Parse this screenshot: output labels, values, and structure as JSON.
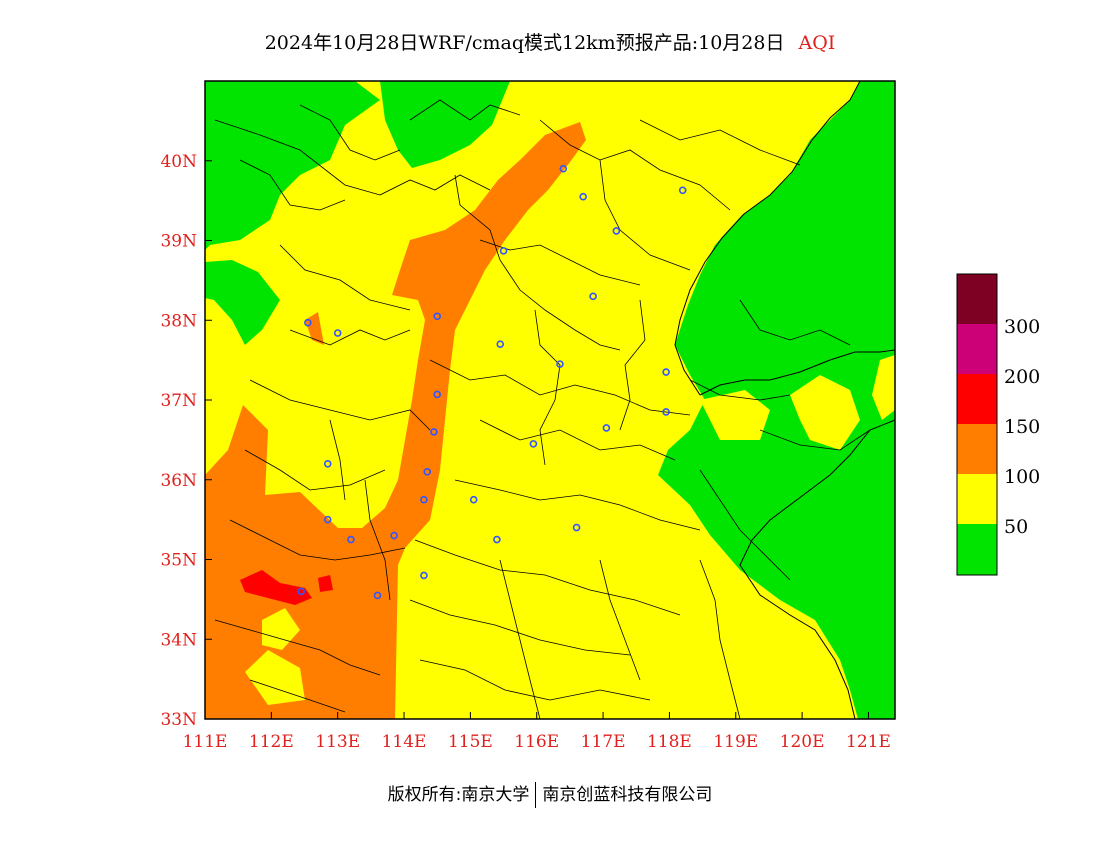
{
  "header": {
    "title": "2024年10月28日WRF/cmaq模式12km预报产品:10月28日",
    "product": "AQI"
  },
  "map": {
    "lon_range": [
      111,
      121.4
    ],
    "lat_range": [
      33,
      41
    ],
    "x_ticks": [
      "111E",
      "112E",
      "113E",
      "114E",
      "115E",
      "116E",
      "117E",
      "118E",
      "119E",
      "120E",
      "121E"
    ],
    "y_ticks": [
      "33N",
      "34N",
      "35N",
      "36N",
      "37N",
      "38N",
      "39N",
      "40N"
    ],
    "colors": {
      "good": "#00e400",
      "moderate": "#ffff00",
      "usg": "#ff7e00",
      "unhealthy": "#ff0000",
      "very_unhealthy": "#cc0077",
      "hazardous": "#7e0023",
      "station": "#3355ff",
      "tick_text": "#e0201c"
    },
    "stations": [
      [
        116.4,
        39.9
      ],
      [
        116.7,
        39.55
      ],
      [
        118.2,
        39.63
      ],
      [
        117.2,
        39.12
      ],
      [
        115.5,
        38.87
      ],
      [
        116.85,
        38.3
      ],
      [
        112.55,
        37.97
      ],
      [
        113.0,
        37.84
      ],
      [
        114.5,
        38.05
      ],
      [
        115.45,
        37.7
      ],
      [
        116.35,
        37.45
      ],
      [
        117.95,
        37.35
      ],
      [
        117.95,
        36.85
      ],
      [
        114.5,
        37.07
      ],
      [
        114.45,
        36.6
      ],
      [
        115.95,
        36.45
      ],
      [
        117.05,
        36.65
      ],
      [
        112.85,
        36.2
      ],
      [
        114.35,
        36.1
      ],
      [
        114.3,
        35.75
      ],
      [
        115.05,
        35.75
      ],
      [
        112.85,
        35.5
      ],
      [
        113.2,
        35.25
      ],
      [
        113.85,
        35.3
      ],
      [
        115.4,
        35.25
      ],
      [
        116.6,
        35.4
      ],
      [
        114.3,
        34.8
      ],
      [
        113.6,
        34.55
      ],
      [
        112.45,
        34.6
      ]
    ]
  },
  "legend": {
    "labels": [
      "50",
      "100",
      "150",
      "200",
      "300"
    ]
  },
  "footer": {
    "left": "版权所有:南京大学",
    "right": "南京创蓝科技有限公司"
  }
}
